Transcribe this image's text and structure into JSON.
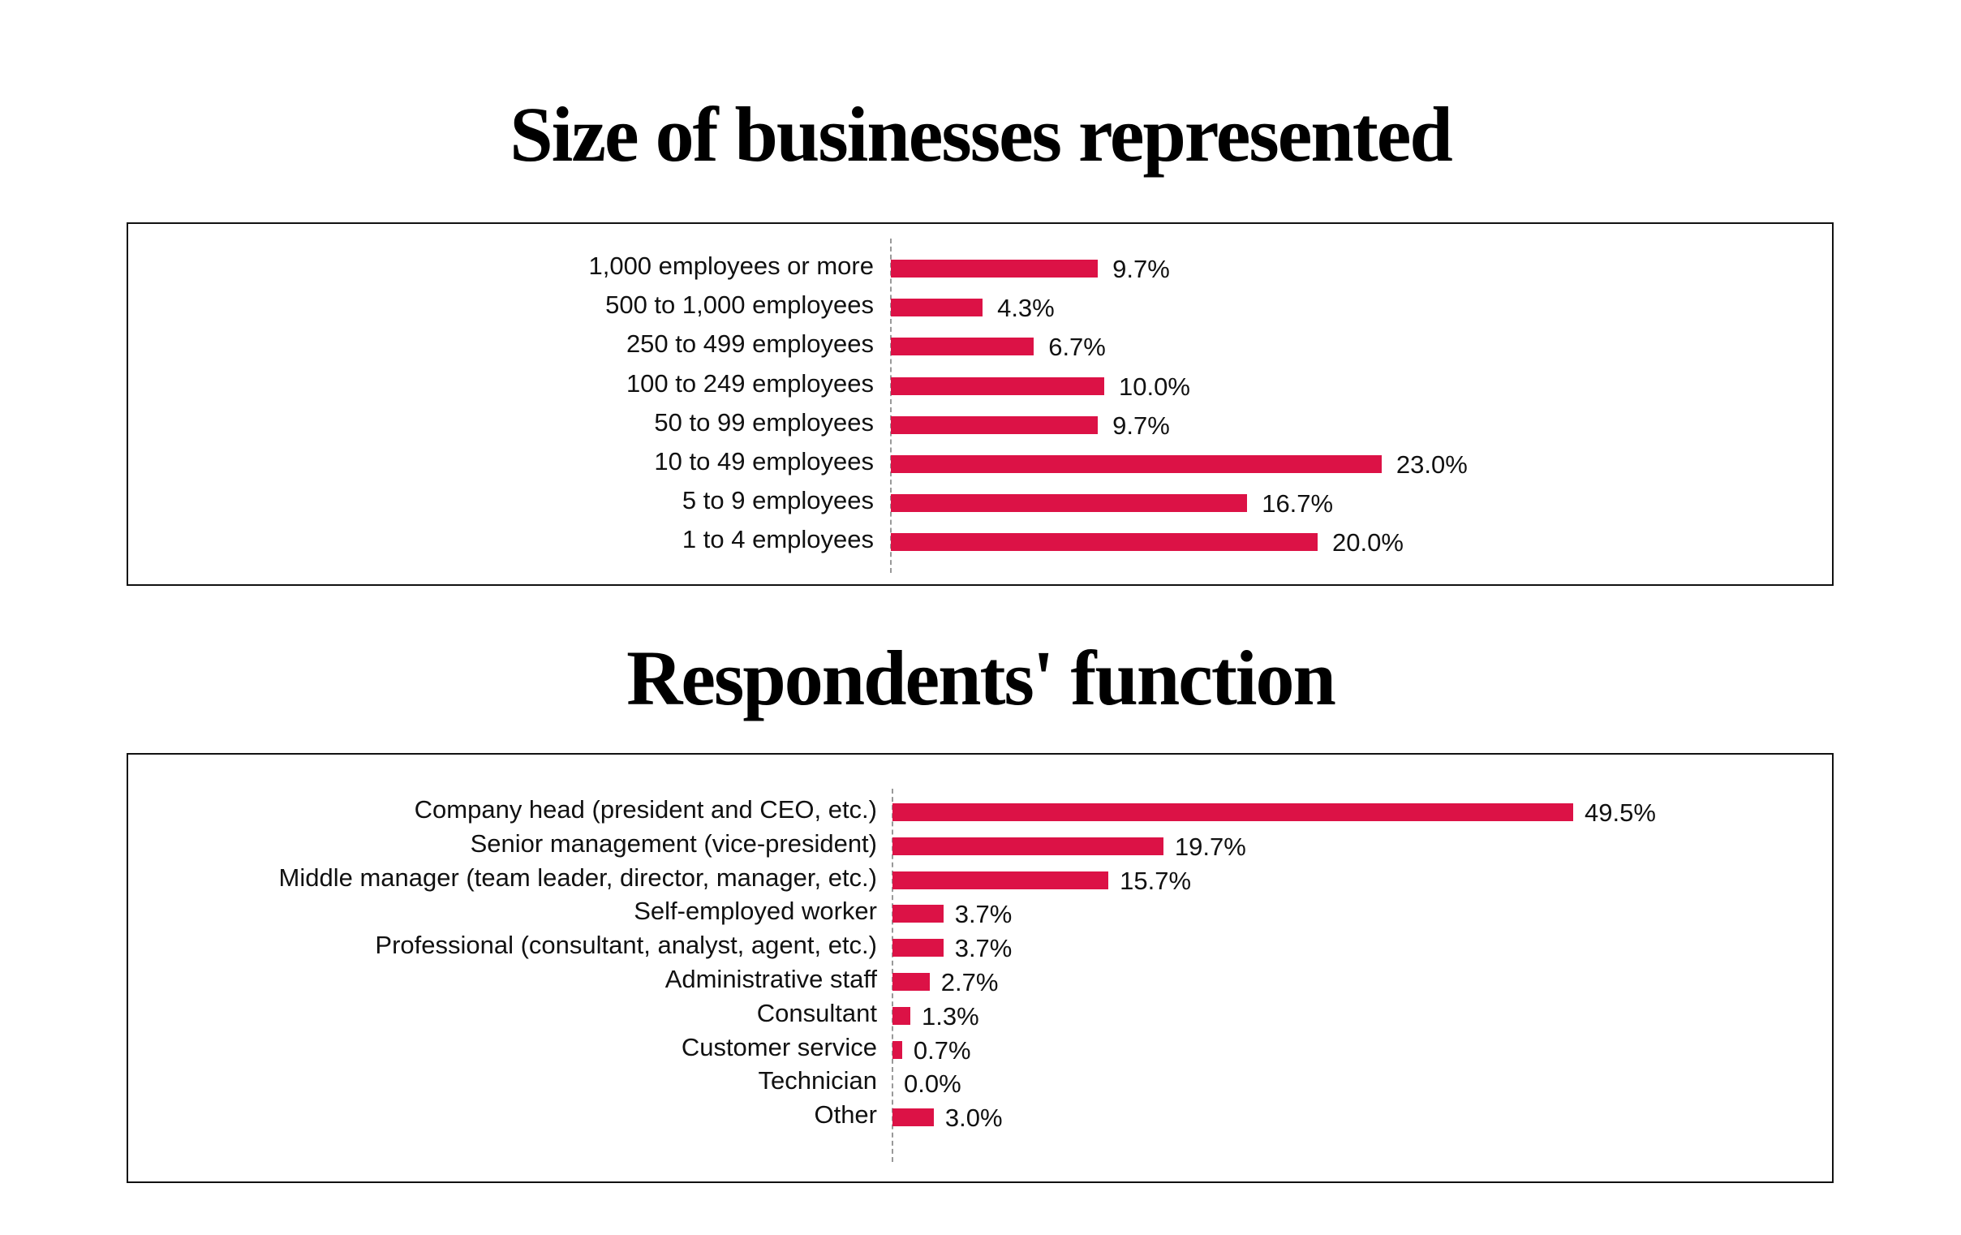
{
  "colors": {
    "bar": "#DC1246"
  },
  "chart_data": [
    {
      "type": "bar",
      "orientation": "horizontal",
      "title": "Size of businesses represented",
      "categories": [
        "1,000 employees or more",
        "500 to 1,000 employees",
        "250 to 499 employees",
        "100 to 249 employees",
        "50 to 99 employees",
        "10 to 49 employees",
        "5 to 9 employees",
        "1 to 4 employees"
      ],
      "values": [
        9.7,
        4.3,
        6.7,
        10.0,
        9.7,
        23.0,
        16.7,
        20.0
      ],
      "value_labels": [
        "9.7%",
        "4.3%",
        "6.7%",
        "10.0%",
        "9.7%",
        "23.0%",
        "16.7%",
        "20.0%"
      ],
      "xlabel": "",
      "ylabel": "",
      "grid": false
    },
    {
      "type": "bar",
      "orientation": "horizontal",
      "title": "Respondents' function",
      "categories": [
        "Company head (president and CEO, etc.)",
        "Senior management (vice-president)",
        "Middle manager (team leader, director, manager, etc.)",
        "Self-employed worker",
        "Professional (consultant, analyst, agent, etc.)",
        "Administrative staff",
        "Consultant",
        "Customer service",
        "Technician",
        "Other"
      ],
      "values": [
        49.5,
        19.7,
        15.7,
        3.7,
        3.7,
        2.7,
        1.3,
        0.7,
        0.0,
        3.0
      ],
      "value_labels": [
        "49.5%",
        "19.7%",
        "15.7%",
        "3.7%",
        "3.7%",
        "2.7%",
        "1.3%",
        "0.7%",
        "0.0%",
        "3.0%"
      ],
      "xlabel": "",
      "ylabel": "",
      "grid": false
    }
  ]
}
